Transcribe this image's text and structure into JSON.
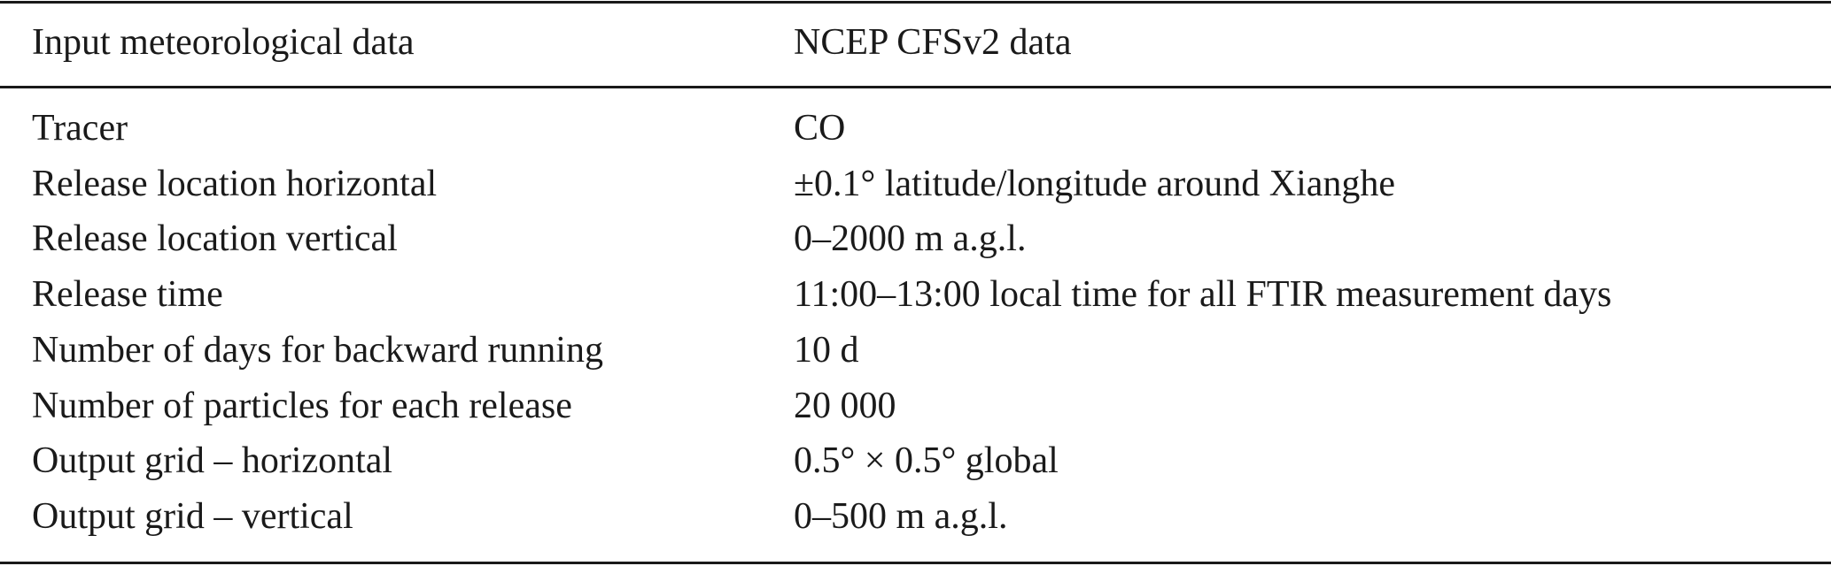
{
  "table": {
    "header": [
      "Input meteorological data",
      "NCEP CFSv2 data"
    ],
    "rows": [
      [
        "Tracer",
        "CO"
      ],
      [
        "Release location horizontal",
        "±0.1° latitude/longitude around Xianghe"
      ],
      [
        "Release location vertical",
        "0–2000 m a.g.l."
      ],
      [
        "Release time",
        "11:00–13:00 local time for all FTIR measurement days"
      ],
      [
        "Number of days for backward running",
        "10 d"
      ],
      [
        "Number of particles for each release",
        "20 000"
      ],
      [
        "Output grid – horizontal",
        "0.5° × 0.5° global"
      ],
      [
        "Output grid – vertical",
        "0–500 m a.g.l."
      ]
    ]
  }
}
